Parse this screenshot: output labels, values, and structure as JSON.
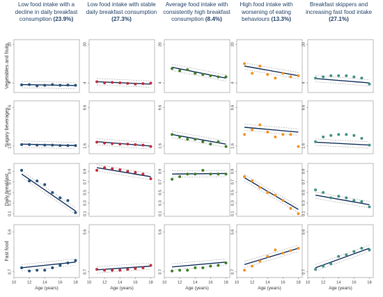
{
  "groups": [
    {
      "label": "Low food intake with a decline in daily breakfast consumption",
      "share": "(23.9%)",
      "marker_color": "#1f4e79"
    },
    {
      "label": "Low food intake with stable daily breakfast consumption",
      "share": "(27.3%)",
      "marker_color": "#c0283a"
    },
    {
      "label": "Average food intake with consistently high breakfast consumption",
      "share": "(8.4%)",
      "marker_color": "#3a7d22"
    },
    {
      "label": "High food intake with worsening of eating behaviours",
      "share": "(13.3%)",
      "marker_color": "#f0921e"
    },
    {
      "label": "Breakfast skippers and increasing fast food intake",
      "share": "(27.1%)",
      "marker_color": "#3f8f80"
    }
  ],
  "chart_data": {
    "type": "scatter",
    "x": [
      11,
      12,
      13,
      14,
      15,
      16,
      17,
      18
    ],
    "xticks": [
      "10",
      "12",
      "14",
      "16",
      "18"
    ],
    "xlim": [
      10,
      18.5
    ],
    "xlabel": "Age (years)",
    "fit_line_color": "#0d2a57",
    "rows": [
      {
        "ylabel": "Vegetables and fruits",
        "ylim": [
          0,
          22
        ],
        "yticks": [
          "4",
          "20"
        ],
        "series": [
          {
            "values": [
              3.2,
              3.3,
              2.8,
              3.0,
              3.3,
              3.0,
              3.1,
              3.0
            ],
            "fit": [
              3.3,
              2.9
            ]
          },
          {
            "values": [
              4.5,
              4.0,
              4.2,
              4.0,
              3.8,
              3.5,
              3.7,
              3.9
            ],
            "fit": [
              4.5,
              3.5
            ]
          },
          {
            "values": [
              10.0,
              9.0,
              9.5,
              8.0,
              7.5,
              7.0,
              6.5,
              6.5
            ],
            "fit": [
              10.5,
              6.0
            ]
          },
          {
            "values": [
              12.0,
              8.0,
              11.0,
              7.5,
              6.0,
              8.0,
              6.5,
              7.0
            ],
            "fit": [
              11.0,
              7.0
            ]
          },
          {
            "values": [
              6.0,
              6.5,
              7.0,
              7.0,
              7.0,
              6.5,
              6.0,
              3.5
            ],
            "fit": [
              5.8,
              4.0
            ]
          }
        ]
      },
      {
        "ylabel": "Sugary beverages",
        "ylim": [
          0,
          11
        ],
        "yticks": [
          "1.6",
          "9.6"
        ],
        "series": [
          {
            "values": [
              1.9,
              1.9,
              1.8,
              1.8,
              1.8,
              1.7,
              1.7,
              1.7
            ],
            "fit": [
              2.0,
              1.7
            ]
          },
          {
            "values": [
              2.4,
              2.2,
              2.1,
              2.0,
              2.0,
              1.9,
              1.8,
              1.5
            ],
            "fit": [
              2.5,
              1.6
            ]
          },
          {
            "values": [
              4.0,
              3.5,
              3.0,
              3.0,
              2.5,
              2.0,
              2.5,
              1.5
            ],
            "fit": [
              4.0,
              2.0
            ]
          },
          {
            "values": [
              4.0,
              5.0,
              6.0,
              4.5,
              3.5,
              4.0,
              4.0,
              1.5
            ],
            "fit": [
              5.5,
              4.5
            ]
          },
          {
            "values": [
              2.5,
              3.5,
              3.8,
              4.0,
              4.0,
              3.8,
              3.2,
              1.8
            ],
            "fit": [
              2.4,
              1.8
            ]
          }
        ]
      },
      {
        "ylabel": "Daily breakfast",
        "ylim": [
          0.05,
          1.05
        ],
        "yticks": [
          "0.1",
          "0.3",
          "0.5",
          "0.7",
          "0.9"
        ],
        "series": [
          {
            "values": [
              0.92,
              0.72,
              0.72,
              0.65,
              0.5,
              0.4,
              0.35,
              0.12
            ],
            "fit": [
              0.85,
              0.15
            ]
          },
          {
            "values": [
              0.92,
              0.97,
              0.95,
              0.93,
              0.9,
              0.88,
              0.85,
              0.76
            ],
            "fit": [
              0.97,
              0.8
            ]
          },
          {
            "values": [
              0.75,
              0.8,
              0.85,
              0.85,
              0.92,
              0.85,
              0.85,
              0.85
            ],
            "fit": [
              0.85,
              0.86
            ]
          },
          {
            "values": [
              0.8,
              0.72,
              0.6,
              0.5,
              0.45,
              0.35,
              0.2,
              0.1
            ],
            "fit": [
              0.78,
              0.18
            ]
          },
          {
            "values": [
              0.55,
              0.5,
              0.4,
              0.43,
              0.4,
              0.35,
              0.33,
              0.23
            ],
            "fit": [
              0.45,
              0.27
            ]
          }
        ]
      },
      {
        "ylabel": "Fast food",
        "ylim": [
          0,
          6.5
        ],
        "yticks": [
          "0.7",
          "5.6"
        ],
        "series": [
          {
            "values": [
              1.2,
              0.8,
              0.9,
              0.9,
              1.2,
              1.5,
              1.8,
              2.1
            ],
            "fit": [
              1.2,
              1.9
            ]
          },
          {
            "values": [
              1.0,
              0.9,
              0.9,
              0.9,
              1.0,
              1.1,
              1.2,
              1.5
            ],
            "fit": [
              0.95,
              1.4
            ]
          },
          {
            "values": [
              0.8,
              0.9,
              0.9,
              1.2,
              1.2,
              1.4,
              1.5,
              1.8
            ],
            "fit": [
              1.3,
              1.9
            ]
          },
          {
            "values": [
              0.9,
              1.4,
              2.0,
              2.6,
              3.4,
              3.0,
              3.3,
              3.6
            ],
            "fit": [
              1.6,
              3.6
            ]
          },
          {
            "values": [
              1.0,
              1.4,
              1.7,
              2.6,
              2.8,
              3.2,
              3.6,
              3.4
            ],
            "fit": [
              1.2,
              3.6
            ]
          }
        ]
      }
    ]
  }
}
